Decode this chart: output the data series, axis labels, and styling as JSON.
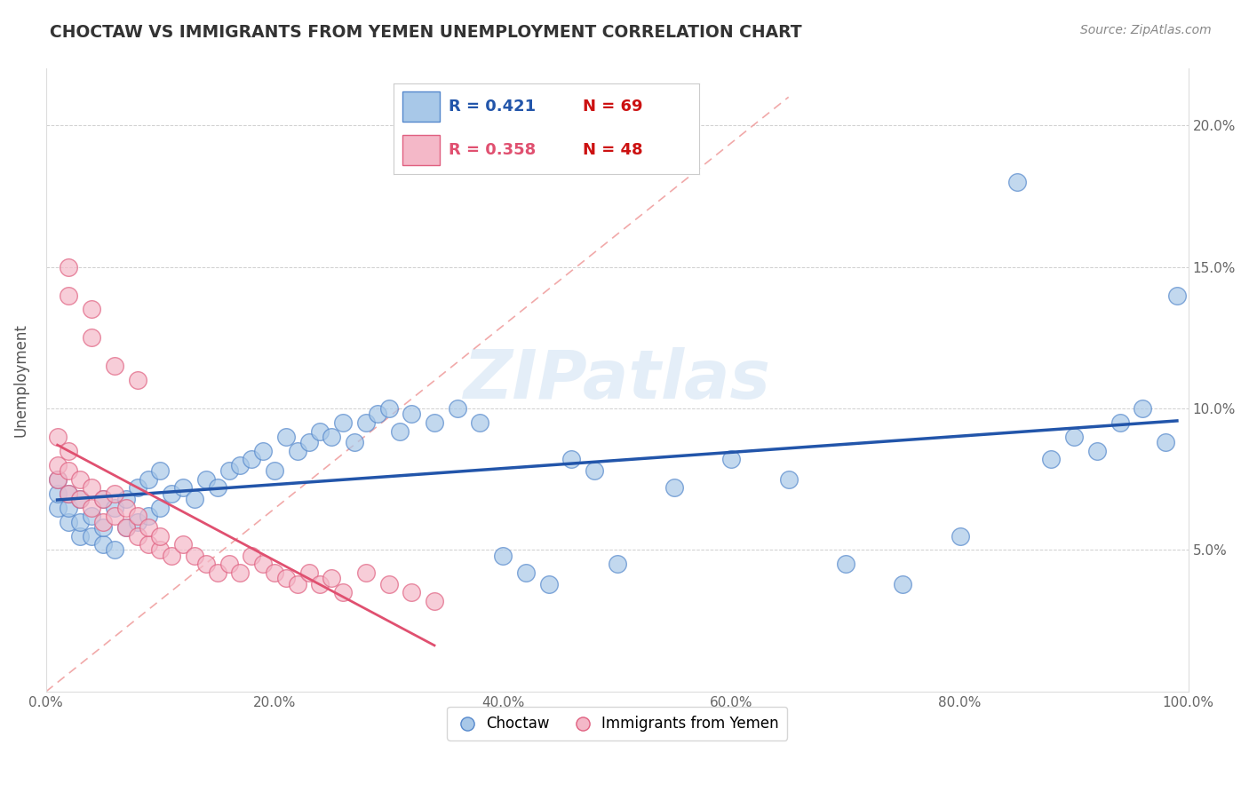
{
  "title": "CHOCTAW VS IMMIGRANTS FROM YEMEN UNEMPLOYMENT CORRELATION CHART",
  "source_text": "Source: ZipAtlas.com",
  "ylabel": "Unemployment",
  "xlim": [
    0,
    1.0
  ],
  "ylim": [
    0.0,
    0.22
  ],
  "xtick_vals": [
    0.0,
    0.2,
    0.4,
    0.6,
    0.8,
    1.0
  ],
  "xtick_labels": [
    "0.0%",
    "20.0%",
    "40.0%",
    "60.0%",
    "80.0%",
    "100.0%"
  ],
  "ytick_vals": [
    0.05,
    0.1,
    0.15,
    0.2
  ],
  "ytick_labels": [
    "5.0%",
    "10.0%",
    "15.0%",
    "20.0%"
  ],
  "blue_R": 0.421,
  "blue_N": 69,
  "pink_R": 0.358,
  "pink_N": 48,
  "blue_fill": "#A8C8E8",
  "blue_edge": "#5588CC",
  "pink_fill": "#F4B8C8",
  "pink_edge": "#E06080",
  "blue_line": "#2255AA",
  "pink_line": "#E05070",
  "diag_color": "#F0A0A0",
  "watermark": "ZIPatlas",
  "watermark_color": "#A8C8E8",
  "legend_label_blue": "Choctaw",
  "legend_label_pink": "Immigrants from Yemen",
  "blue_x": [
    0.01,
    0.01,
    0.01,
    0.02,
    0.02,
    0.02,
    0.03,
    0.03,
    0.03,
    0.04,
    0.04,
    0.05,
    0.05,
    0.05,
    0.06,
    0.06,
    0.07,
    0.07,
    0.08,
    0.08,
    0.09,
    0.09,
    0.1,
    0.1,
    0.11,
    0.12,
    0.13,
    0.14,
    0.15,
    0.16,
    0.17,
    0.18,
    0.19,
    0.2,
    0.21,
    0.22,
    0.23,
    0.24,
    0.25,
    0.26,
    0.27,
    0.28,
    0.29,
    0.3,
    0.31,
    0.32,
    0.34,
    0.36,
    0.38,
    0.4,
    0.42,
    0.44,
    0.46,
    0.48,
    0.5,
    0.55,
    0.6,
    0.65,
    0.7,
    0.75,
    0.8,
    0.85,
    0.88,
    0.9,
    0.92,
    0.94,
    0.96,
    0.98,
    0.99
  ],
  "blue_y": [
    0.065,
    0.07,
    0.075,
    0.06,
    0.065,
    0.07,
    0.055,
    0.06,
    0.068,
    0.055,
    0.062,
    0.052,
    0.058,
    0.068,
    0.05,
    0.065,
    0.058,
    0.068,
    0.06,
    0.072,
    0.062,
    0.075,
    0.065,
    0.078,
    0.07,
    0.072,
    0.068,
    0.075,
    0.072,
    0.078,
    0.08,
    0.082,
    0.085,
    0.078,
    0.09,
    0.085,
    0.088,
    0.092,
    0.09,
    0.095,
    0.088,
    0.095,
    0.098,
    0.1,
    0.092,
    0.098,
    0.095,
    0.1,
    0.095,
    0.048,
    0.042,
    0.038,
    0.082,
    0.078,
    0.045,
    0.072,
    0.082,
    0.075,
    0.045,
    0.038,
    0.055,
    0.18,
    0.082,
    0.09,
    0.085,
    0.095,
    0.1,
    0.088,
    0.14
  ],
  "pink_x": [
    0.01,
    0.01,
    0.01,
    0.02,
    0.02,
    0.02,
    0.03,
    0.03,
    0.04,
    0.04,
    0.05,
    0.05,
    0.06,
    0.06,
    0.07,
    0.07,
    0.08,
    0.08,
    0.09,
    0.09,
    0.1,
    0.1,
    0.11,
    0.12,
    0.13,
    0.14,
    0.15,
    0.16,
    0.17,
    0.18,
    0.19,
    0.2,
    0.21,
    0.22,
    0.23,
    0.24,
    0.25,
    0.26,
    0.28,
    0.3,
    0.32,
    0.34,
    0.02,
    0.04,
    0.06,
    0.08,
    0.02,
    0.04
  ],
  "pink_y": [
    0.075,
    0.08,
    0.09,
    0.07,
    0.078,
    0.085,
    0.068,
    0.075,
    0.065,
    0.072,
    0.06,
    0.068,
    0.062,
    0.07,
    0.058,
    0.065,
    0.055,
    0.062,
    0.052,
    0.058,
    0.05,
    0.055,
    0.048,
    0.052,
    0.048,
    0.045,
    0.042,
    0.045,
    0.042,
    0.048,
    0.045,
    0.042,
    0.04,
    0.038,
    0.042,
    0.038,
    0.04,
    0.035,
    0.042,
    0.038,
    0.035,
    0.032,
    0.14,
    0.125,
    0.115,
    0.11,
    0.15,
    0.135
  ]
}
